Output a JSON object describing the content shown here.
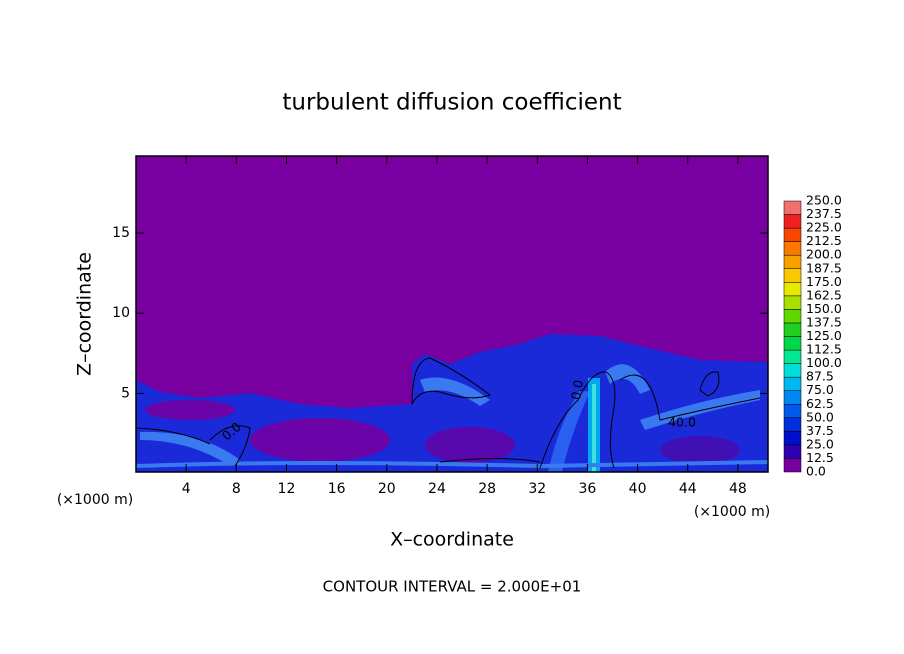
{
  "chart_data": {
    "type": "contour",
    "title": "turbulent diffusion coefficient",
    "x_label": "X–coordinate",
    "y_label": "Z–coordinate",
    "x_unit_label": "(×1000 m)",
    "x_unit_label_right": "(×1000 m)",
    "contour_interval": "CONTOUR INTERVAL = 2.000E+01",
    "contour_labels": [
      "40.0",
      "0.0",
      "0.0"
    ],
    "xlim": [
      0,
      50.4
    ],
    "ylim": [
      0.1,
      19.8
    ],
    "xticks": [
      4,
      8,
      12,
      16,
      20,
      24,
      28,
      32,
      36,
      40,
      44,
      48
    ],
    "yticks": [
      5,
      10,
      15
    ],
    "colorbar": {
      "levels": [
        {
          "value": 0,
          "label": "0.0"
        },
        {
          "value": 12.5,
          "label": "12.5"
        },
        {
          "value": 25,
          "label": "25.0"
        },
        {
          "value": 37.5,
          "label": "37.5"
        },
        {
          "value": 50,
          "label": "50.0"
        },
        {
          "value": 62.5,
          "label": "62.5"
        },
        {
          "value": 75,
          "label": "75.0"
        },
        {
          "value": 87.5,
          "label": "87.5"
        },
        {
          "value": 100,
          "label": "100.0"
        },
        {
          "value": 112.5,
          "label": "112.5"
        },
        {
          "value": 125,
          "label": "125.0"
        },
        {
          "value": 137.5,
          "label": "137.5"
        },
        {
          "value": 150,
          "label": "150.0"
        },
        {
          "value": 162.5,
          "label": "162.5"
        },
        {
          "value": 175,
          "label": "175.0"
        },
        {
          "value": 187.5,
          "label": "187.5"
        },
        {
          "value": 200,
          "label": "200.0"
        },
        {
          "value": 212.5,
          "label": "212.5"
        },
        {
          "value": 225,
          "label": "225.0"
        },
        {
          "value": 237.5,
          "label": "237.5"
        },
        {
          "value": 250,
          "label": "250.0"
        }
      ],
      "colors": [
        "#7800a0",
        "#3000b0",
        "#0010c8",
        "#0030dc",
        "#0058ec",
        "#0088f0",
        "#00b8f0",
        "#00e0d8",
        "#00e890",
        "#00d848",
        "#20d020",
        "#60d800",
        "#a8e000",
        "#e8e800",
        "#f8c800",
        "#f8a000",
        "#f87800",
        "#f84800",
        "#f02020",
        "#f07070"
      ]
    }
  }
}
